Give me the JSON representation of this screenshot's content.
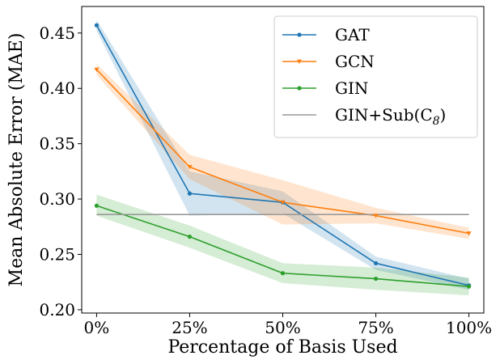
{
  "chart_data": {
    "type": "line",
    "title": "",
    "xlabel": "Percentage of Basis Used",
    "ylabel": "Mean Absolute Error (MAE)",
    "categories": [
      "0%",
      "25%",
      "50%",
      "75%",
      "100%"
    ],
    "x": [
      0,
      25,
      50,
      75,
      100
    ],
    "xlim": [
      -4,
      104
    ],
    "ylim": [
      0.197,
      0.474
    ],
    "yticks": [
      0.2,
      0.25,
      0.3,
      0.35,
      0.4,
      0.45
    ],
    "ytick_labels": [
      "0.20",
      "0.25",
      "0.30",
      "0.35",
      "0.40",
      "0.45"
    ],
    "grid": false,
    "legend_position": "top-right",
    "series": [
      {
        "name": "GAT",
        "color": "#1f77b4",
        "marker": "circle",
        "values": [
          0.457,
          0.305,
          0.297,
          0.242,
          0.222
        ],
        "lower": [
          0.452,
          0.285,
          0.287,
          0.236,
          0.218
        ],
        "upper": [
          0.462,
          0.325,
          0.307,
          0.248,
          0.228
        ]
      },
      {
        "name": "GCN",
        "color": "#ff7f0e",
        "marker": "triangle",
        "values": [
          0.417,
          0.329,
          0.297,
          0.285,
          0.269
        ],
        "lower": [
          0.412,
          0.318,
          0.277,
          0.278,
          0.264
        ],
        "upper": [
          0.422,
          0.34,
          0.317,
          0.292,
          0.274
        ]
      },
      {
        "name": "GIN",
        "color": "#2ca02c",
        "marker": "circle",
        "values": [
          0.294,
          0.266,
          0.233,
          0.228,
          0.221
        ],
        "lower": [
          0.285,
          0.256,
          0.224,
          0.218,
          0.213
        ],
        "upper": [
          0.304,
          0.276,
          0.242,
          0.238,
          0.229
        ]
      },
      {
        "name": "GIN+Sub(C",
        "subscript": "8",
        "suffix": ")",
        "color": "#999999",
        "marker": "none",
        "constant": 0.286
      }
    ]
  }
}
